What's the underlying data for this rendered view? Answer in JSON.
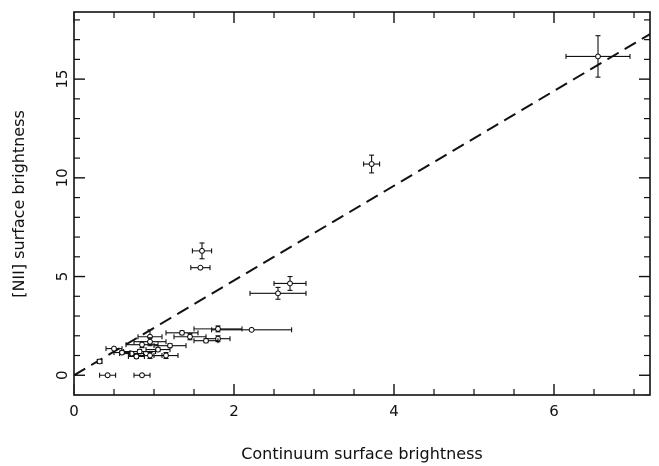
{
  "chart_data": {
    "type": "scatter",
    "xlabel": "Continuum surface brightness",
    "ylabel": "[NII] surface brightness",
    "xlim": [
      0,
      7.2
    ],
    "ylim": [
      -1,
      18.4
    ],
    "x_ticks": [
      0,
      2,
      4,
      6
    ],
    "y_ticks": [
      0,
      5,
      10,
      15
    ],
    "x_tick_labels": [
      "0",
      "2",
      "4",
      "6"
    ],
    "y_tick_labels": [
      "0",
      "5",
      "10",
      "15"
    ],
    "grid": false,
    "points": [
      {
        "x": 6.55,
        "y": 16.15,
        "xerr": 0.4,
        "yerr": 1.05
      },
      {
        "x": 3.72,
        "y": 10.7,
        "xerr": 0.1,
        "yerr": 0.45
      },
      {
        "x": 2.7,
        "y": 4.65,
        "xerr": 0.2,
        "yerr": 0.35
      },
      {
        "x": 2.55,
        "y": 4.15,
        "xerr": 0.35,
        "yerr": 0.3
      },
      {
        "x": 1.6,
        "y": 6.3,
        "xerr": 0.12,
        "yerr": 0.4
      },
      {
        "x": 1.58,
        "y": 5.45,
        "xerr": 0.12,
        "yerr": 0.0
      },
      {
        "x": 2.22,
        "y": 2.3,
        "xerr": 0.5,
        "yerr": 0.0
      },
      {
        "x": 1.8,
        "y": 2.35,
        "xerr": 0.3,
        "yerr": 0.15
      },
      {
        "x": 1.8,
        "y": 1.85,
        "xerr": 0.15,
        "yerr": 0.15
      },
      {
        "x": 1.65,
        "y": 1.75,
        "xerr": 0.15,
        "yerr": 0.1
      },
      {
        "x": 1.45,
        "y": 1.95,
        "xerr": 0.2,
        "yerr": 0.15
      },
      {
        "x": 1.35,
        "y": 2.15,
        "xerr": 0.2,
        "yerr": 0.1
      },
      {
        "x": 1.2,
        "y": 1.5,
        "xerr": 0.2,
        "yerr": 0.1
      },
      {
        "x": 1.15,
        "y": 1.0,
        "xerr": 0.15,
        "yerr": 0.15
      },
      {
        "x": 1.05,
        "y": 1.3,
        "xerr": 0.15,
        "yerr": 0.1
      },
      {
        "x": 0.95,
        "y": 1.95,
        "xerr": 0.15,
        "yerr": 0.35
      },
      {
        "x": 0.95,
        "y": 1.7,
        "xerr": 0.2,
        "yerr": 0.2
      },
      {
        "x": 0.95,
        "y": 1.0,
        "xerr": 0.15,
        "yerr": 0.15
      },
      {
        "x": 0.85,
        "y": 1.55,
        "xerr": 0.2,
        "yerr": 0.15
      },
      {
        "x": 0.82,
        "y": 1.2,
        "xerr": 0.2,
        "yerr": 0.1
      },
      {
        "x": 0.78,
        "y": 0.95,
        "xerr": 0.1,
        "yerr": 0.1
      },
      {
        "x": 0.72,
        "y": 1.1,
        "xerr": 0.15,
        "yerr": 0.1
      },
      {
        "x": 0.6,
        "y": 1.15,
        "xerr": 0.1,
        "yerr": 0.1
      },
      {
        "x": 0.5,
        "y": 1.35,
        "xerr": 0.1,
        "yerr": 0.05
      },
      {
        "x": 0.85,
        "y": 0.0,
        "xerr": 0.1,
        "yerr": 0.0
      },
      {
        "x": 0.42,
        "y": 0.0,
        "xerr": 0.1,
        "yerr": 0.0
      },
      {
        "x": 0.32,
        "y": 0.7,
        "xerr": 0.03,
        "yerr": 0.1
      }
    ],
    "reference_line": {
      "style": "dashed",
      "slope": 2.4,
      "intercept": 0.0
    }
  }
}
